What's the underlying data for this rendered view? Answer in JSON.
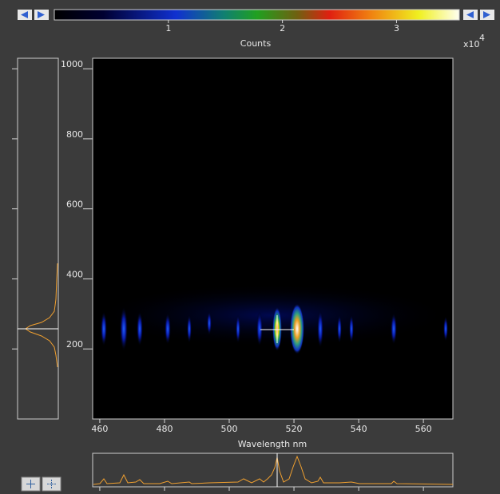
{
  "colorbar": {
    "label": "Counts",
    "lim": [
      0,
      3.55
    ],
    "ticks": [
      1,
      2,
      3
    ],
    "scale_base": "x10",
    "scale_exponent": "4"
  },
  "image": {
    "xlabel": "Wavelength nm",
    "xlim": [
      457.8,
      569.1
    ],
    "xticks": [
      460,
      480,
      500,
      520,
      540,
      560
    ],
    "ylim": [
      0,
      1030
    ],
    "yticks": [
      200,
      400,
      600,
      800,
      1000
    ]
  }
}
